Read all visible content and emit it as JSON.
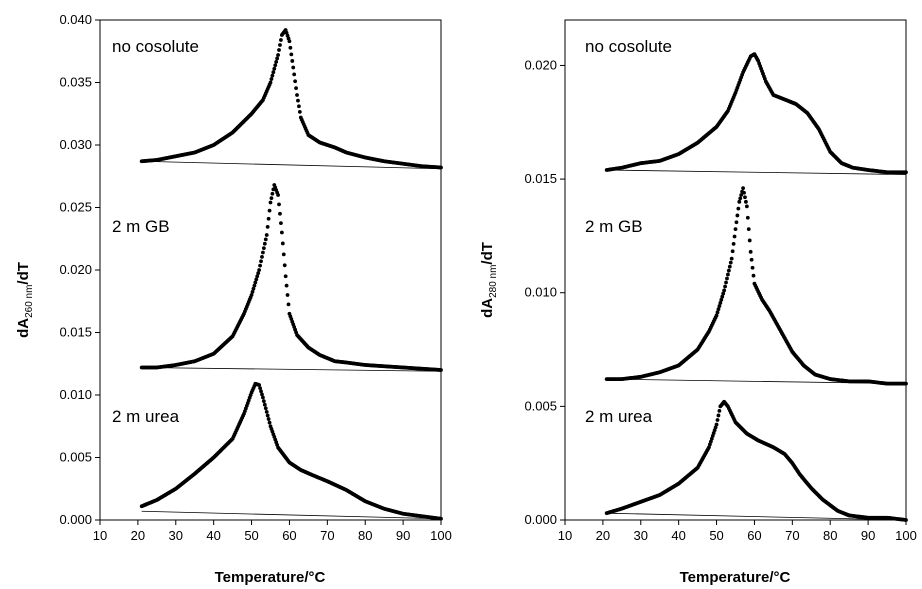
{
  "chart_data": [
    {
      "type": "scatter",
      "xlabel": "Temperature/°C",
      "ylabel_main": "dA",
      "ylabel_sub": "260 nm",
      "ylabel_tail": "/dT",
      "xlim": [
        10,
        100
      ],
      "ylim": [
        0,
        0.04
      ],
      "x_ticks": [
        10,
        20,
        30,
        40,
        50,
        60,
        70,
        80,
        90,
        100
      ],
      "y_ticks": [
        0,
        0.005,
        0.01,
        0.015,
        0.02,
        0.025,
        0.03,
        0.035,
        0.04
      ],
      "x_tick_labels": [
        "10",
        "20",
        "30",
        "40",
        "50",
        "60",
        "70",
        "80",
        "90",
        "100"
      ],
      "y_tick_labels": [
        "0.000",
        "0.005",
        "0.010",
        "0.015",
        "0.020",
        "0.025",
        "0.030",
        "0.035",
        "0.040"
      ],
      "grid": false,
      "series": [
        {
          "label": "no cosolute",
          "points": [
            [
              21,
              0.0287
            ],
            [
              25,
              0.0288
            ],
            [
              30,
              0.0291
            ],
            [
              35,
              0.0294
            ],
            [
              40,
              0.03
            ],
            [
              45,
              0.031
            ],
            [
              50,
              0.0325
            ],
            [
              53,
              0.0336
            ],
            [
              55,
              0.035
            ],
            [
              57,
              0.0372
            ],
            [
              58,
              0.0388
            ],
            [
              59,
              0.0392
            ],
            [
              60,
              0.0383
            ],
            [
              61,
              0.0362
            ],
            [
              62,
              0.034
            ],
            [
              63,
              0.0322
            ],
            [
              65,
              0.0308
            ],
            [
              68,
              0.0302
            ],
            [
              72,
              0.0298
            ],
            [
              75,
              0.0294
            ],
            [
              80,
              0.029
            ],
            [
              85,
              0.0287
            ],
            [
              90,
              0.0285
            ],
            [
              95,
              0.0283
            ],
            [
              100,
              0.0282
            ]
          ],
          "baseline": [
            [
              21,
              0.0287
            ],
            [
              100,
              0.0281
            ]
          ]
        },
        {
          "label": "2 m GB",
          "points": [
            [
              21,
              0.0122
            ],
            [
              25,
              0.0122
            ],
            [
              30,
              0.0124
            ],
            [
              35,
              0.0127
            ],
            [
              40,
              0.0133
            ],
            [
              45,
              0.0147
            ],
            [
              48,
              0.0165
            ],
            [
              50,
              0.018
            ],
            [
              52,
              0.02
            ],
            [
              54,
              0.0228
            ],
            [
              55,
              0.0254
            ],
            [
              56,
              0.0268
            ],
            [
              57,
              0.026
            ],
            [
              58,
              0.023
            ],
            [
              59,
              0.0195
            ],
            [
              60,
              0.0165
            ],
            [
              62,
              0.0148
            ],
            [
              65,
              0.0138
            ],
            [
              68,
              0.0132
            ],
            [
              72,
              0.0127
            ],
            [
              75,
              0.0126
            ],
            [
              80,
              0.0124
            ],
            [
              85,
              0.0123
            ],
            [
              90,
              0.0122
            ],
            [
              95,
              0.0121
            ],
            [
              100,
              0.012
            ]
          ],
          "baseline": [
            [
              21,
              0.0122
            ],
            [
              100,
              0.0119
            ]
          ]
        },
        {
          "label": "2 m urea",
          "points": [
            [
              21,
              0.0011
            ],
            [
              25,
              0.0016
            ],
            [
              30,
              0.0025
            ],
            [
              35,
              0.0037
            ],
            [
              40,
              0.005
            ],
            [
              45,
              0.0065
            ],
            [
              48,
              0.0085
            ],
            [
              50,
              0.0102
            ],
            [
              51,
              0.0109
            ],
            [
              52,
              0.0108
            ],
            [
              53,
              0.0098
            ],
            [
              55,
              0.0075
            ],
            [
              57,
              0.0058
            ],
            [
              60,
              0.0046
            ],
            [
              63,
              0.004
            ],
            [
              66,
              0.0036
            ],
            [
              70,
              0.0031
            ],
            [
              75,
              0.0024
            ],
            [
              80,
              0.0015
            ],
            [
              85,
              0.0009
            ],
            [
              90,
              0.0005
            ],
            [
              95,
              0.0003
            ],
            [
              100,
              0.0001
            ]
          ],
          "baseline": [
            [
              21,
              0.0007
            ],
            [
              100,
              0.0001
            ]
          ]
        }
      ]
    },
    {
      "type": "scatter",
      "xlabel": "Temperature/°C",
      "ylabel_main": "dA",
      "ylabel_sub": "280 nm",
      "ylabel_tail": "/dT",
      "xlim": [
        10,
        100
      ],
      "ylim": [
        0,
        0.022
      ],
      "x_ticks": [
        10,
        20,
        30,
        40,
        50,
        60,
        70,
        80,
        90,
        100
      ],
      "y_ticks": [
        0,
        0.005,
        0.01,
        0.015,
        0.02
      ],
      "x_tick_labels": [
        "10",
        "20",
        "30",
        "40",
        "50",
        "60",
        "70",
        "80",
        "90",
        "100"
      ],
      "y_tick_labels": [
        "0.000",
        "0.005",
        "0.010",
        "0.015",
        "0.020"
      ],
      "grid": false,
      "series": [
        {
          "label": "no cosolute",
          "points": [
            [
              21,
              0.0154
            ],
            [
              25,
              0.0155
            ],
            [
              30,
              0.0157
            ],
            [
              35,
              0.0158
            ],
            [
              40,
              0.0161
            ],
            [
              45,
              0.0166
            ],
            [
              50,
              0.0173
            ],
            [
              53,
              0.018
            ],
            [
              55,
              0.0188
            ],
            [
              57,
              0.0197
            ],
            [
              59,
              0.0204
            ],
            [
              60,
              0.0205
            ],
            [
              61,
              0.0202
            ],
            [
              63,
              0.0193
            ],
            [
              65,
              0.0187
            ],
            [
              68,
              0.0185
            ],
            [
              71,
              0.0183
            ],
            [
              74,
              0.0179
            ],
            [
              77,
              0.0172
            ],
            [
              80,
              0.0162
            ],
            [
              83,
              0.0157
            ],
            [
              86,
              0.0155
            ],
            [
              90,
              0.0154
            ],
            [
              95,
              0.0153
            ],
            [
              100,
              0.0153
            ]
          ],
          "baseline": [
            [
              21,
              0.0154
            ],
            [
              100,
              0.0152
            ]
          ]
        },
        {
          "label": "2 m GB",
          "points": [
            [
              21,
              0.0062
            ],
            [
              25,
              0.0062
            ],
            [
              30,
              0.0063
            ],
            [
              35,
              0.0065
            ],
            [
              40,
              0.0068
            ],
            [
              45,
              0.0075
            ],
            [
              48,
              0.0083
            ],
            [
              50,
              0.009
            ],
            [
              52,
              0.0101
            ],
            [
              54,
              0.0115
            ],
            [
              55,
              0.0128
            ],
            [
              56,
              0.014
            ],
            [
              57,
              0.0146
            ],
            [
              58,
              0.0138
            ],
            [
              59,
              0.0118
            ],
            [
              60,
              0.0104
            ],
            [
              62,
              0.0097
            ],
            [
              64,
              0.0092
            ],
            [
              67,
              0.0083
            ],
            [
              70,
              0.0074
            ],
            [
              73,
              0.0068
            ],
            [
              76,
              0.0064
            ],
            [
              80,
              0.0062
            ],
            [
              85,
              0.0061
            ],
            [
              90,
              0.0061
            ],
            [
              95,
              0.006
            ],
            [
              100,
              0.006
            ]
          ],
          "baseline": [
            [
              21,
              0.0062
            ],
            [
              100,
              0.006
            ]
          ]
        },
        {
          "label": "2 m urea",
          "points": [
            [
              21,
              0.0003
            ],
            [
              25,
              0.0005
            ],
            [
              30,
              0.0008
            ],
            [
              35,
              0.0011
            ],
            [
              40,
              0.0016
            ],
            [
              45,
              0.0023
            ],
            [
              48,
              0.0032
            ],
            [
              50,
              0.0042
            ],
            [
              51,
              0.005
            ],
            [
              52,
              0.0052
            ],
            [
              53,
              0.005
            ],
            [
              55,
              0.0043
            ],
            [
              58,
              0.0038
            ],
            [
              61,
              0.0035
            ],
            [
              65,
              0.0032
            ],
            [
              68,
              0.0029
            ],
            [
              70,
              0.0025
            ],
            [
              72,
              0.002
            ],
            [
              75,
              0.0014
            ],
            [
              78,
              0.0009
            ],
            [
              82,
              0.0004
            ],
            [
              85,
              0.0002
            ],
            [
              90,
              0.0001
            ],
            [
              95,
              0.0001
            ],
            [
              100,
              0.0
            ]
          ],
          "baseline": [
            [
              21,
              0.0003
            ],
            [
              100,
              0.0
            ]
          ]
        }
      ]
    }
  ]
}
